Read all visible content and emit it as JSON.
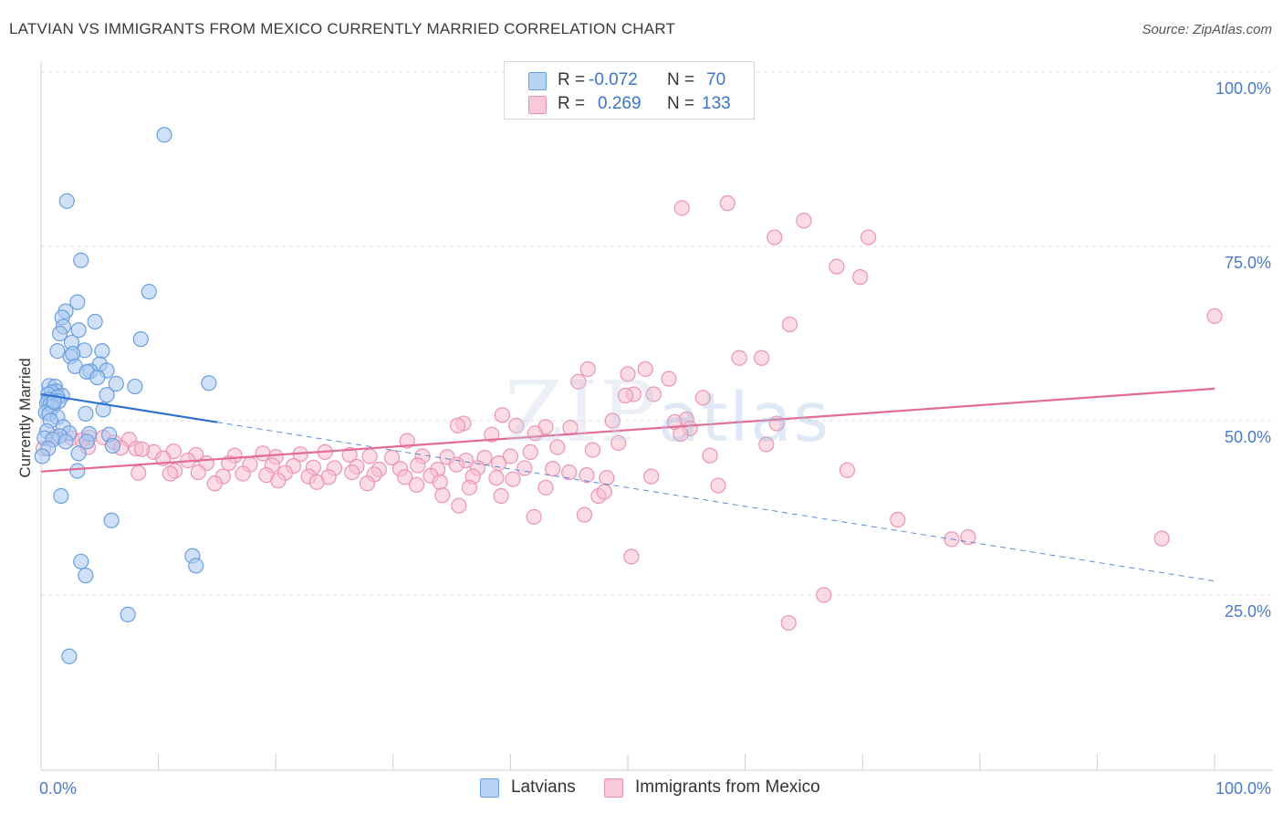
{
  "header": {
    "title": "LATVIAN VS IMMIGRANTS FROM MEXICO CURRENTLY MARRIED CORRELATION CHART",
    "source": "Source: ZipAtlas.com"
  },
  "watermark": {
    "zip": "ZIP",
    "atlas": "atlas"
  },
  "stats": {
    "latvians": {
      "r_label": "R =",
      "r_value": "-0.072",
      "n_label": "N =",
      "n_value": "70"
    },
    "mexico": {
      "r_label": "R =",
      "r_value": "0.269",
      "n_label": "N =",
      "n_value": "133"
    }
  },
  "legend": {
    "latvians": "Latvians",
    "mexico": "Immigrants from Mexico"
  },
  "colors": {
    "latvians_fill": "#a9c8f0",
    "latvians_stroke": "#6a9fe0",
    "latvians_line": "#2f6fd0",
    "mexico_fill": "#f7bfd0",
    "mexico_stroke": "#ec93b2",
    "mexico_line": "#e36a95",
    "tick_text": "#4a7ac9",
    "grid": "#dcdcdc"
  },
  "chart_data": {
    "type": "scatter",
    "title": "LATVIAN VS IMMIGRANTS FROM MEXICO CURRENTLY MARRIED CORRELATION CHART",
    "xlabel": "",
    "ylabel": "Currently Married",
    "xlim": [
      0,
      100
    ],
    "ylim": [
      0,
      105
    ],
    "x_tick_labels": [
      "0.0%",
      "100.0%"
    ],
    "y_ticks": [
      25,
      50,
      75,
      100
    ],
    "y_tick_labels": [
      "25.0%",
      "50.0%",
      "75.0%",
      "100.0%"
    ],
    "grid": true,
    "legend_position": "bottom-center",
    "series": [
      {
        "name": "Latvians",
        "r": -0.072,
        "n": 70,
        "trend": {
          "x0": 0,
          "y0": 53.8,
          "x1": 100,
          "y1": 27.0,
          "solid_until_x": 15
        },
        "points": [
          [
            10.5,
            91
          ],
          [
            2.2,
            81.5
          ],
          [
            3.4,
            73
          ],
          [
            9.2,
            68.5
          ],
          [
            3.1,
            67
          ],
          [
            2.1,
            65.7
          ],
          [
            1.8,
            64.8
          ],
          [
            4.6,
            64.2
          ],
          [
            1.9,
            63.5
          ],
          [
            3.2,
            63
          ],
          [
            1.6,
            62.5
          ],
          [
            8.5,
            61.7
          ],
          [
            2.6,
            61.2
          ],
          [
            1.4,
            60
          ],
          [
            3.7,
            60.1
          ],
          [
            5.2,
            60
          ],
          [
            2.5,
            59.2
          ],
          [
            2.7,
            59.6
          ],
          [
            5.0,
            58.1
          ],
          [
            2.9,
            57.8
          ],
          [
            4.2,
            57.1
          ],
          [
            5.6,
            57.2
          ],
          [
            3.9,
            57.0
          ],
          [
            4.8,
            56.2
          ],
          [
            14.3,
            55.4
          ],
          [
            6.4,
            55.3
          ],
          [
            0.7,
            55.0
          ],
          [
            1.2,
            54.9
          ],
          [
            8.0,
            54.9
          ],
          [
            1.3,
            54.2
          ],
          [
            0.9,
            54.1
          ],
          [
            0.6,
            53.8
          ],
          [
            1.8,
            53.6
          ],
          [
            5.6,
            53.7
          ],
          [
            1.4,
            53.4
          ],
          [
            0.6,
            53.0
          ],
          [
            1.5,
            52.8
          ],
          [
            0.5,
            52.5
          ],
          [
            0.8,
            52.4
          ],
          [
            1.0,
            52.0
          ],
          [
            5.3,
            51.6
          ],
          [
            0.4,
            51.2
          ],
          [
            0.7,
            51.0
          ],
          [
            3.8,
            51.0
          ],
          [
            1.4,
            50.5
          ],
          [
            0.8,
            50.0
          ],
          [
            1.9,
            49.1
          ],
          [
            0.5,
            48.5
          ],
          [
            2.4,
            48.2
          ],
          [
            4.1,
            48.1
          ],
          [
            5.8,
            48.0
          ],
          [
            1.6,
            47.8
          ],
          [
            0.3,
            47.5
          ],
          [
            1.0,
            47.3
          ],
          [
            2.1,
            47.0
          ],
          [
            3.9,
            47.0
          ],
          [
            6.1,
            46.4
          ],
          [
            0.6,
            46.0
          ],
          [
            3.2,
            45.3
          ],
          [
            0.1,
            44.9
          ],
          [
            3.1,
            42.8
          ],
          [
            1.7,
            39.2
          ],
          [
            6.0,
            35.7
          ],
          [
            12.9,
            30.6
          ],
          [
            3.4,
            29.8
          ],
          [
            13.2,
            29.2
          ],
          [
            3.8,
            27.8
          ],
          [
            7.4,
            22.2
          ],
          [
            2.4,
            16.2
          ],
          [
            1.1,
            52.7
          ]
        ]
      },
      {
        "name": "Immigrants from Mexico",
        "r": 0.269,
        "n": 133,
        "trend": {
          "x0": 0,
          "y0": 42.7,
          "x1": 100,
          "y1": 54.6
        },
        "points": [
          [
            58.5,
            81.2
          ],
          [
            54.6,
            80.5
          ],
          [
            65.0,
            78.7
          ],
          [
            62.5,
            76.3
          ],
          [
            70.5,
            76.3
          ],
          [
            67.8,
            72.1
          ],
          [
            69.8,
            70.6
          ],
          [
            100,
            65.0
          ],
          [
            63.8,
            63.8
          ],
          [
            59.5,
            59.0
          ],
          [
            61.4,
            59.0
          ],
          [
            46.6,
            57.4
          ],
          [
            50.0,
            56.7
          ],
          [
            51.5,
            57.4
          ],
          [
            53.5,
            56.0
          ],
          [
            45.8,
            55.6
          ],
          [
            50.5,
            53.8
          ],
          [
            52.2,
            53.8
          ],
          [
            49.8,
            53.6
          ],
          [
            56.4,
            53.3
          ],
          [
            39.3,
            50.8
          ],
          [
            48.7,
            50.0
          ],
          [
            55.0,
            50.2
          ],
          [
            54.0,
            49.8
          ],
          [
            36.0,
            49.6
          ],
          [
            62.7,
            49.6
          ],
          [
            35.5,
            49.3
          ],
          [
            40.5,
            49.3
          ],
          [
            43.0,
            49.1
          ],
          [
            45.1,
            49.0
          ],
          [
            55.3,
            48.9
          ],
          [
            42.1,
            48.2
          ],
          [
            38.4,
            48.0
          ],
          [
            54.5,
            48.1
          ],
          [
            31.2,
            47.1
          ],
          [
            49.2,
            46.8
          ],
          [
            61.8,
            46.6
          ],
          [
            1.2,
            47.7
          ],
          [
            2.6,
            47.5
          ],
          [
            4.1,
            47.6
          ],
          [
            5.3,
            47.6
          ],
          [
            7.5,
            47.3
          ],
          [
            3.5,
            47.2
          ],
          [
            6.2,
            46.9
          ],
          [
            8.1,
            46.0
          ],
          [
            9.6,
            45.5
          ],
          [
            11.3,
            45.6
          ],
          [
            13.2,
            45.1
          ],
          [
            16.5,
            45.0
          ],
          [
            18.9,
            45.3
          ],
          [
            20.0,
            44.8
          ],
          [
            22.1,
            45.2
          ],
          [
            24.2,
            45.5
          ],
          [
            26.3,
            45.1
          ],
          [
            28.0,
            44.9
          ],
          [
            29.9,
            44.7
          ],
          [
            32.5,
            44.9
          ],
          [
            34.6,
            44.8
          ],
          [
            36.2,
            44.3
          ],
          [
            37.8,
            44.7
          ],
          [
            40.0,
            44.9
          ],
          [
            41.7,
            45.5
          ],
          [
            44.0,
            46.2
          ],
          [
            47.0,
            45.8
          ],
          [
            57.0,
            45.0
          ],
          [
            4.0,
            46.2
          ],
          [
            6.8,
            46.1
          ],
          [
            8.6,
            45.9
          ],
          [
            10.4,
            44.6
          ],
          [
            12.5,
            44.3
          ],
          [
            14.1,
            43.9
          ],
          [
            16.0,
            43.9
          ],
          [
            17.8,
            43.7
          ],
          [
            19.7,
            43.6
          ],
          [
            21.5,
            43.5
          ],
          [
            23.2,
            43.3
          ],
          [
            25.0,
            43.2
          ],
          [
            26.9,
            43.4
          ],
          [
            28.8,
            43.0
          ],
          [
            30.6,
            43.1
          ],
          [
            32.1,
            43.6
          ],
          [
            33.8,
            43.0
          ],
          [
            35.4,
            43.7
          ],
          [
            37.2,
            43.2
          ],
          [
            39.0,
            43.9
          ],
          [
            41.2,
            43.2
          ],
          [
            43.6,
            43.1
          ],
          [
            11.4,
            42.8
          ],
          [
            13.4,
            42.6
          ],
          [
            15.5,
            42.0
          ],
          [
            17.2,
            42.4
          ],
          [
            19.2,
            42.2
          ],
          [
            20.8,
            42.5
          ],
          [
            22.8,
            42.0
          ],
          [
            24.5,
            41.9
          ],
          [
            26.5,
            42.6
          ],
          [
            28.4,
            42.3
          ],
          [
            31.0,
            41.9
          ],
          [
            33.2,
            42.1
          ],
          [
            36.8,
            42.0
          ],
          [
            38.8,
            41.8
          ],
          [
            45.0,
            42.6
          ],
          [
            46.5,
            42.2
          ],
          [
            48.2,
            41.8
          ],
          [
            52.0,
            42.0
          ],
          [
            8.3,
            42.5
          ],
          [
            14.8,
            41.0
          ],
          [
            20.2,
            41.4
          ],
          [
            27.8,
            41.0
          ],
          [
            34.0,
            41.2
          ],
          [
            40.2,
            41.6
          ],
          [
            23.5,
            41.2
          ],
          [
            11.0,
            42.4
          ],
          [
            32.0,
            40.8
          ],
          [
            36.5,
            40.4
          ],
          [
            43.0,
            40.4
          ],
          [
            57.7,
            40.7
          ],
          [
            68.7,
            42.9
          ],
          [
            34.2,
            39.3
          ],
          [
            35.6,
            37.8
          ],
          [
            39.2,
            39.2
          ],
          [
            47.5,
            39.2
          ],
          [
            48.0,
            39.8
          ],
          [
            46.3,
            36.5
          ],
          [
            42.0,
            36.2
          ],
          [
            73.0,
            35.8
          ],
          [
            77.6,
            33.0
          ],
          [
            79.0,
            33.3
          ],
          [
            95.5,
            33.1
          ],
          [
            50.3,
            30.5
          ],
          [
            66.7,
            25.0
          ],
          [
            63.7,
            21.0
          ],
          [
            0.2,
            46.0
          ]
        ]
      }
    ]
  }
}
